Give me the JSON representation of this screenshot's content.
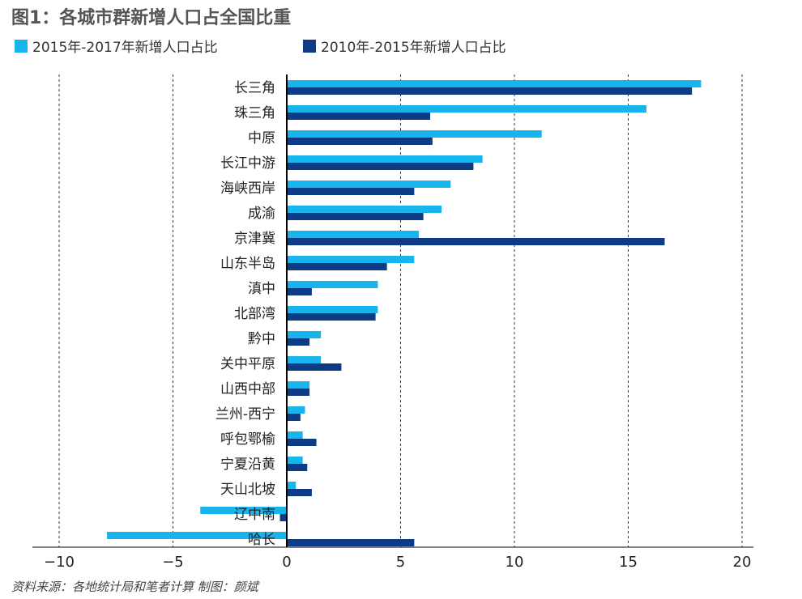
{
  "title": "图1：各城市群新增人口占全国比重",
  "source": "资料来源：各地统计局和笔者计算      制图：颜斌",
  "colors": {
    "series_2015_2017": "#18b4ee",
    "series_2010_2015": "#0e3b85"
  },
  "chart_data": {
    "type": "bar",
    "orientation": "horizontal",
    "title": "图1：各城市群新增人口占全国比重",
    "categories": [
      "长三角",
      "珠三角",
      "中原",
      "长江中游",
      "海峡西岸",
      "成渝",
      "京津冀",
      "山东半岛",
      "滇中",
      "北部湾",
      "黔中",
      "关中平原",
      "山西中部",
      "兰州-西宁",
      "呼包鄂榆",
      "宁夏沿黄",
      "天山北坡",
      "辽中南",
      "哈长"
    ],
    "series": [
      {
        "name": "2015年-2017年新增人口占比",
        "values": [
          18.2,
          15.8,
          11.2,
          8.6,
          7.2,
          6.8,
          5.8,
          5.6,
          4.0,
          4.0,
          1.5,
          1.5,
          1.0,
          0.8,
          0.7,
          0.7,
          0.4,
          -3.8,
          -7.9
        ]
      },
      {
        "name": "2010年-2015年新增人口占比",
        "values": [
          17.8,
          6.3,
          6.4,
          8.2,
          5.6,
          6.0,
          16.6,
          4.4,
          1.1,
          3.9,
          1.0,
          2.4,
          1.0,
          0.6,
          1.3,
          0.9,
          1.1,
          -0.3,
          5.6
        ]
      }
    ],
    "xlim": [
      -10,
      20
    ],
    "xticks": [
      -10,
      -5,
      0,
      5,
      10,
      15,
      20
    ],
    "xtick_labels": [
      "−10",
      "−5",
      "0",
      "5",
      "10",
      "15",
      "20"
    ],
    "grid": "vertical dashed",
    "legend_position": "top"
  }
}
